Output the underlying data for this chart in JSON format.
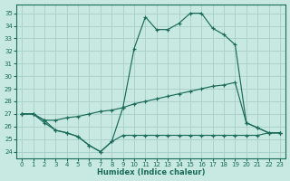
{
  "xlabel": "Humidex (Indice chaleur)",
  "bg_color": "#c8e8e2",
  "grid_color": "#a8cec8",
  "line_color": "#1a6b5a",
  "ylim": [
    23.5,
    35.7
  ],
  "xlim": [
    -0.5,
    23.5
  ],
  "yticks": [
    24,
    25,
    26,
    27,
    28,
    29,
    30,
    31,
    32,
    33,
    34,
    35
  ],
  "xticks": [
    0,
    1,
    2,
    3,
    4,
    5,
    6,
    7,
    8,
    9,
    10,
    11,
    12,
    13,
    14,
    15,
    16,
    17,
    18,
    19,
    20,
    21,
    22,
    23
  ],
  "curve_top_x": [
    0,
    1,
    2,
    3,
    4,
    5,
    6,
    7,
    8,
    9,
    10,
    11,
    12,
    13,
    14,
    15,
    16,
    17,
    18,
    19,
    20,
    21,
    22,
    23
  ],
  "curve_top_y": [
    27.0,
    27.0,
    26.5,
    25.7,
    25.5,
    25.2,
    24.5,
    24.0,
    24.8,
    27.5,
    32.2,
    34.7,
    33.7,
    33.7,
    34.2,
    35.0,
    35.0,
    33.8,
    33.3,
    32.5,
    26.3,
    25.9,
    25.5,
    25.5
  ],
  "curve_mid_x": [
    0,
    1,
    2,
    3,
    4,
    5,
    6,
    7,
    8,
    9,
    10,
    11,
    12,
    13,
    14,
    15,
    16,
    17,
    18,
    19,
    20,
    21,
    22,
    23
  ],
  "curve_mid_y": [
    27.0,
    27.0,
    26.5,
    26.5,
    26.7,
    26.8,
    27.0,
    27.2,
    27.3,
    27.5,
    27.8,
    28.0,
    28.2,
    28.4,
    28.6,
    28.8,
    29.0,
    29.2,
    29.3,
    29.5,
    26.3,
    25.9,
    25.5,
    25.5
  ],
  "curve_bot_x": [
    0,
    1,
    2,
    3,
    4,
    5,
    6,
    7,
    8,
    9,
    10,
    11,
    12,
    13,
    14,
    15,
    16,
    17,
    18,
    19,
    20,
    21,
    22,
    23
  ],
  "curve_bot_y": [
    27.0,
    27.0,
    26.3,
    25.7,
    25.5,
    25.2,
    24.5,
    24.0,
    24.8,
    25.3,
    25.3,
    25.3,
    25.3,
    25.3,
    25.3,
    25.3,
    25.3,
    25.3,
    25.3,
    25.3,
    25.3,
    25.3,
    25.5,
    25.5
  ]
}
